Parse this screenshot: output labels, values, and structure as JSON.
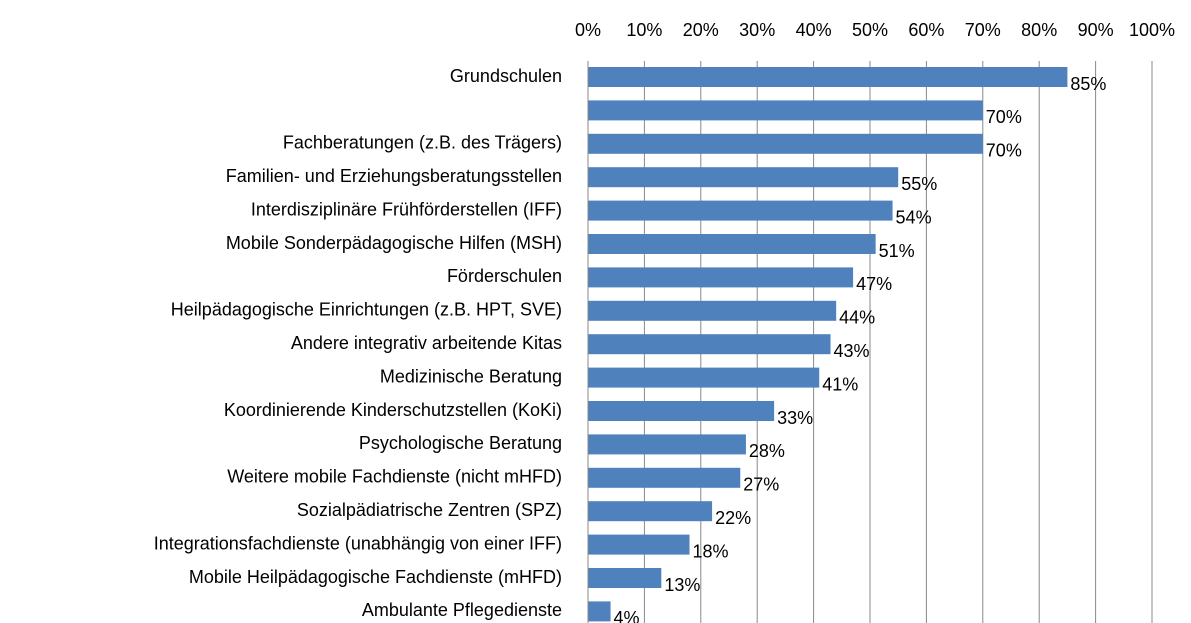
{
  "chart_data": {
    "type": "bar",
    "orientation": "horizontal",
    "categories": [
      "Grundschulen",
      null,
      "Fachberatungen (z.B. des Trägers)",
      "Familien- und Erziehungsberatungsstellen",
      "Interdisziplinäre Frühförderstellen (IFF)",
      "Mobile Sonderpädagogische Hilfen (MSH)",
      "Förderschulen",
      "Heilpädagogische Einrichtungen (z.B. HPT, SVE)",
      "Andere integrativ arbeitende Kitas",
      "Medizinische Beratung ",
      "Koordinierende Kinderschutzstellen (KoKi)",
      "Psychologische Beratung",
      "Weitere mobile Fachdienste (nicht mHFD)",
      "Sozialpädiatrische Zentren (SPZ)",
      "Integrationsfachdienste (unabhängig von einer IFF)",
      "Mobile Heilpädagogische Fachdienste (mHFD)",
      "Ambulante Pflegedienste"
    ],
    "values": [
      85,
      70,
      70,
      55,
      54,
      51,
      47,
      44,
      43,
      41,
      33,
      28,
      27,
      22,
      18,
      13,
      4
    ],
    "value_labels": [
      "85%",
      "70%",
      "70%",
      "55%",
      "54%",
      "51%",
      "47%",
      "44%",
      "43%",
      "41%",
      "33%",
      "28%",
      "27%",
      "22%",
      "18%",
      "13%",
      "4%"
    ],
    "color": "#4f81bd",
    "xlim": [
      0,
      100
    ],
    "xticks": [
      {
        "value": 0,
        "label": "0%"
      },
      {
        "value": 10,
        "label": "10%"
      },
      {
        "value": 20,
        "label": "20%"
      },
      {
        "value": 30,
        "label": "30%"
      },
      {
        "value": 40,
        "label": "40%"
      },
      {
        "value": 50,
        "label": "50%"
      },
      {
        "value": 60,
        "label": "60%"
      },
      {
        "value": 70,
        "label": "70%"
      },
      {
        "value": 80,
        "label": "80%"
      },
      {
        "value": 90,
        "label": "90%"
      },
      {
        "value": 100,
        "label": "100%"
      }
    ],
    "grid": true
  }
}
